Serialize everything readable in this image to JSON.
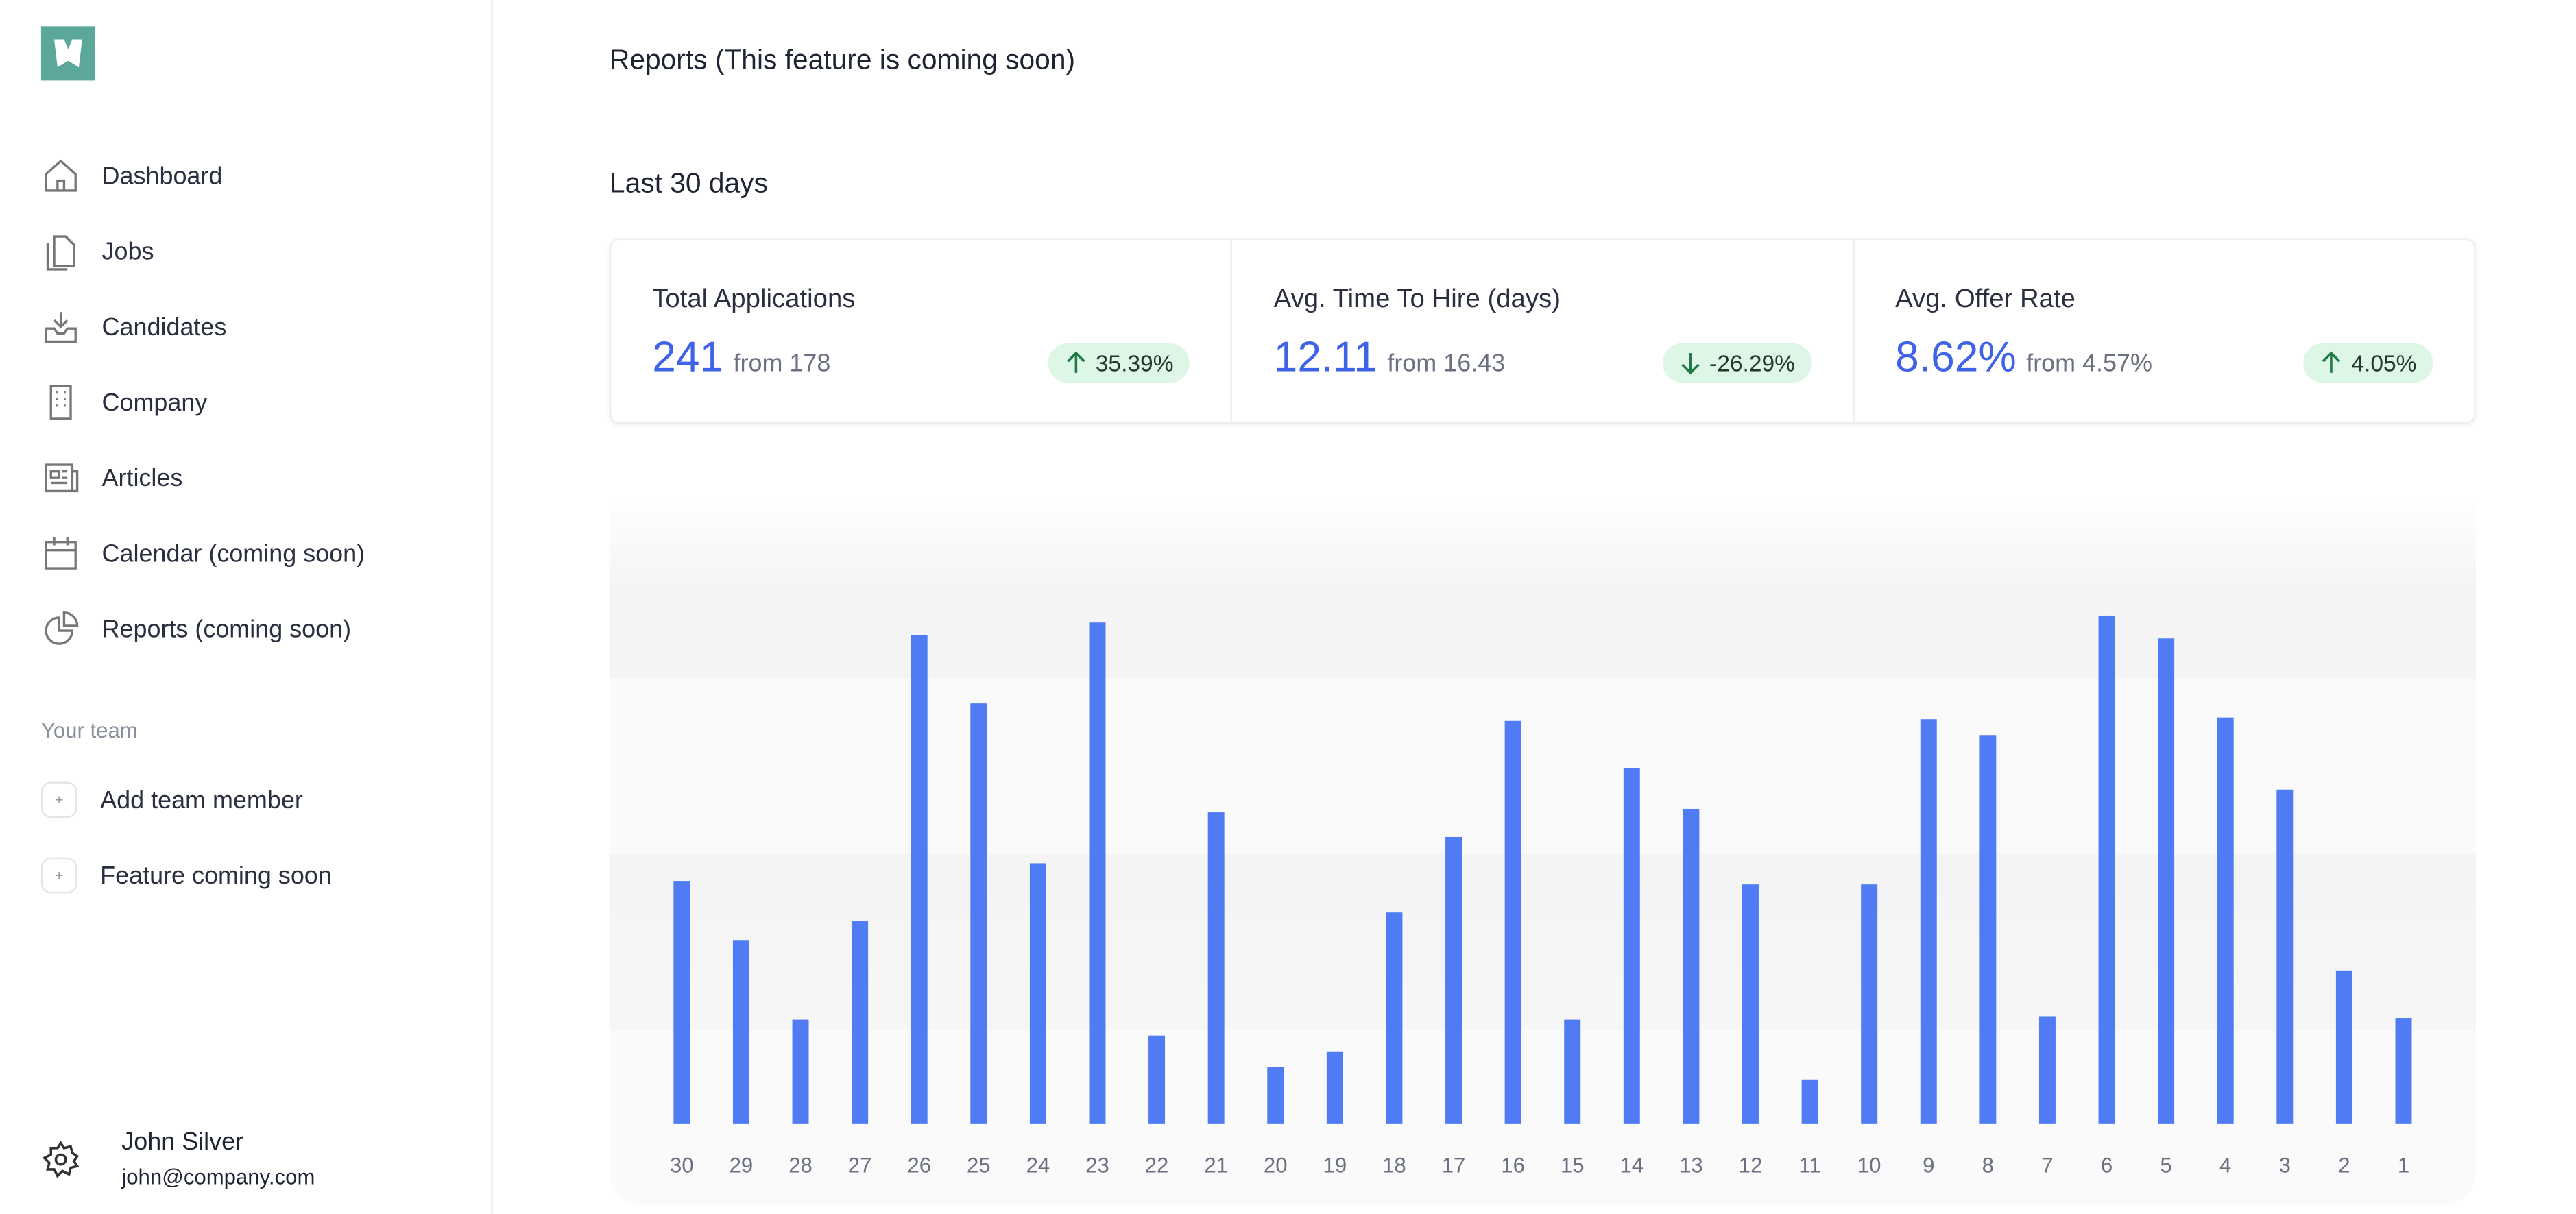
{
  "sidebar": {
    "nav": [
      "Dashboard",
      "Jobs",
      "Candidates",
      "Company",
      "Articles",
      "Calendar (coming soon)",
      "Reports (coming soon)"
    ],
    "team_label": "Your team",
    "team": [
      "Add team member",
      "Feature coming soon"
    ],
    "user": {
      "name": "John Silver",
      "email": "john@company.com"
    }
  },
  "header": {
    "title": "Reports (This feature is coming soon)",
    "period": "Last 30 days"
  },
  "stats": [
    {
      "label": "Total Applications",
      "value": "241",
      "from": "from 178",
      "change": "35.39%"
    },
    {
      "label": "Avg. Time To Hire (days)",
      "value": "12.11",
      "from": "from 16.43",
      "change": "-26.29%"
    },
    {
      "label": "Avg. Offer Rate",
      "value": "8.62%",
      "from": "from 4.57%",
      "change": "4.05%"
    }
  ],
  "chart_data": {
    "type": "bar",
    "color": "#4f7cf5",
    "categories": [
      "30",
      "29",
      "28",
      "27",
      "26",
      "25",
      "24",
      "23",
      "22",
      "21",
      "20",
      "19",
      "18",
      "17",
      "16",
      "15",
      "14",
      "13",
      "12",
      "11",
      "10",
      "9",
      "8",
      "7",
      "6",
      "5",
      "4",
      "3",
      "2",
      "1"
    ],
    "values": [
      13.8,
      10.4,
      5.9,
      11.5,
      27.8,
      23.9,
      14.8,
      28.5,
      5.0,
      17.7,
      3.2,
      4.1,
      12.0,
      16.3,
      22.9,
      5.9,
      20.2,
      17.9,
      13.6,
      2.5,
      13.6,
      23.0,
      22.1,
      6.1,
      28.9,
      27.6,
      23.1,
      19.0,
      8.7,
      6.0
    ],
    "ylim": [
      0,
      35
    ]
  }
}
